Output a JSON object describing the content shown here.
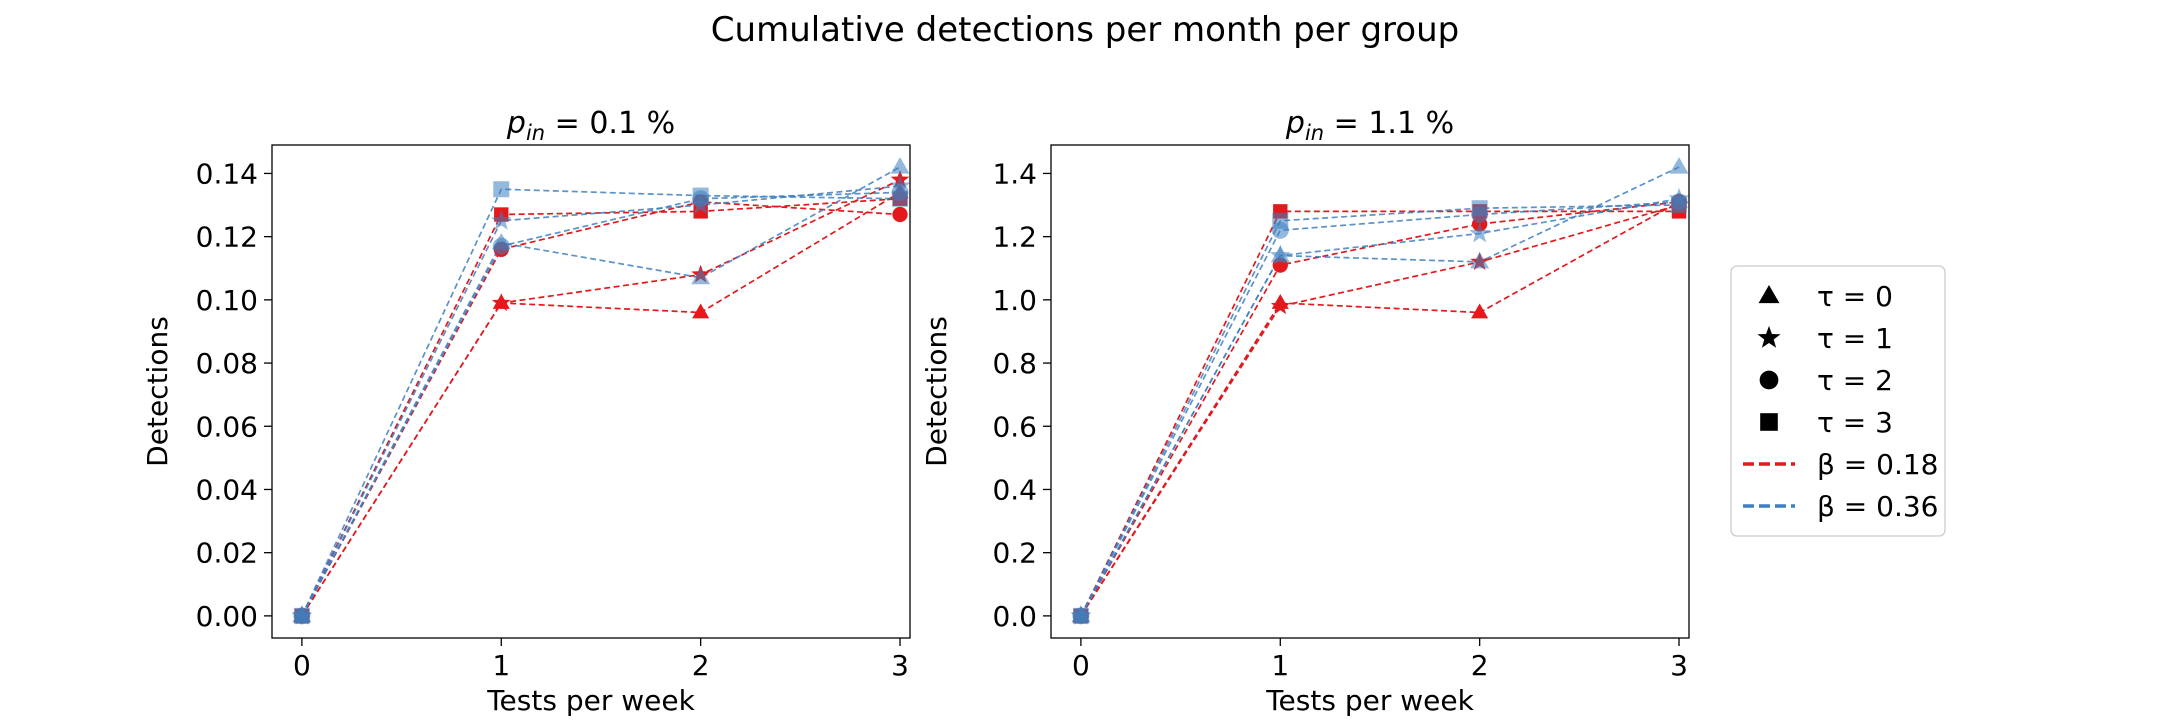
{
  "figure": {
    "title": "Cumulative detections per month per group"
  },
  "legend": {
    "placement": "right",
    "markers": [
      {
        "marker": "triangle",
        "label": "τ = 0"
      },
      {
        "marker": "star",
        "label": "τ = 1"
      },
      {
        "marker": "circle",
        "label": "τ = 2"
      },
      {
        "marker": "square",
        "label": "τ = 3"
      }
    ],
    "lines": [
      {
        "color": "#e3191c",
        "label": "β = 0.18"
      },
      {
        "color": "#3d7fc0",
        "label": "β = 0.36"
      }
    ]
  },
  "colors": {
    "beta_018": "#e3191c",
    "beta_036": "#3d7fc0",
    "beta_036_fill": "#8fb4dc",
    "marker_black": "#000000"
  },
  "chart_data": [
    {
      "type": "line",
      "title_var": "p",
      "title_sub": "in",
      "title_rest": " = 0.1 %",
      "xlabel": "Tests per week",
      "ylabel": "Detections",
      "x": [
        0,
        1,
        2,
        3
      ],
      "xticks": [
        "0",
        "1",
        "2",
        "3"
      ],
      "xlim": [
        -0.15,
        3.05
      ],
      "yticks": [
        "0.00",
        "0.02",
        "0.04",
        "0.06",
        "0.08",
        "0.10",
        "0.12",
        "0.14"
      ],
      "ytick_values": [
        0,
        0.02,
        0.04,
        0.06,
        0.08,
        0.1,
        0.12,
        0.14
      ],
      "ylim": [
        -0.007,
        0.149
      ],
      "grid": false,
      "series": [
        {
          "beta": "0.18",
          "tau": 0,
          "marker": "triangle",
          "values": [
            0,
            0.099,
            0.096,
            0.134
          ]
        },
        {
          "beta": "0.18",
          "tau": 1,
          "marker": "star",
          "values": [
            0,
            0.099,
            0.108,
            0.138
          ]
        },
        {
          "beta": "0.18",
          "tau": 2,
          "marker": "circle",
          "values": [
            0,
            0.116,
            0.131,
            0.127
          ]
        },
        {
          "beta": "0.18",
          "tau": 3,
          "marker": "square",
          "values": [
            0,
            0.127,
            0.128,
            0.132
          ]
        },
        {
          "beta": "0.36",
          "tau": 0,
          "marker": "triangle",
          "values": [
            0,
            0.118,
            0.107,
            0.142
          ]
        },
        {
          "beta": "0.36",
          "tau": 1,
          "marker": "star",
          "values": [
            0,
            0.125,
            0.13,
            0.136
          ]
        },
        {
          "beta": "0.36",
          "tau": 2,
          "marker": "circle",
          "values": [
            0,
            0.117,
            0.132,
            0.134
          ]
        },
        {
          "beta": "0.36",
          "tau": 3,
          "marker": "square",
          "values": [
            0,
            0.135,
            0.133,
            0.132
          ]
        }
      ]
    },
    {
      "type": "line",
      "title_var": "p",
      "title_sub": "in",
      "title_rest": " = 1.1 %",
      "xlabel": "Tests per week",
      "ylabel": "Detections",
      "x": [
        0,
        1,
        2,
        3
      ],
      "xticks": [
        "0",
        "1",
        "2",
        "3"
      ],
      "xlim": [
        -0.15,
        3.05
      ],
      "yticks": [
        "0.0",
        "0.2",
        "0.4",
        "0.6",
        "0.8",
        "1.0",
        "1.2",
        "1.4"
      ],
      "ytick_values": [
        0,
        0.2,
        0.4,
        0.6,
        0.8,
        1.0,
        1.2,
        1.4
      ],
      "ylim": [
        -0.07,
        1.49
      ],
      "grid": false,
      "series": [
        {
          "beta": "0.18",
          "tau": 0,
          "marker": "triangle",
          "values": [
            0,
            0.99,
            0.96,
            1.31
          ]
        },
        {
          "beta": "0.18",
          "tau": 1,
          "marker": "star",
          "values": [
            0,
            0.98,
            1.12,
            1.3
          ]
        },
        {
          "beta": "0.18",
          "tau": 2,
          "marker": "circle",
          "values": [
            0,
            1.11,
            1.24,
            1.31
          ]
        },
        {
          "beta": "0.18",
          "tau": 3,
          "marker": "square",
          "values": [
            0,
            1.28,
            1.28,
            1.28
          ]
        },
        {
          "beta": "0.36",
          "tau": 0,
          "marker": "triangle",
          "values": [
            0,
            1.14,
            1.12,
            1.42
          ]
        },
        {
          "beta": "0.36",
          "tau": 1,
          "marker": "star",
          "values": [
            0,
            1.14,
            1.21,
            1.32
          ]
        },
        {
          "beta": "0.36",
          "tau": 2,
          "marker": "circle",
          "values": [
            0,
            1.22,
            1.27,
            1.31
          ]
        },
        {
          "beta": "0.36",
          "tau": 3,
          "marker": "square",
          "values": [
            0,
            1.25,
            1.29,
            1.3
          ]
        }
      ]
    }
  ]
}
